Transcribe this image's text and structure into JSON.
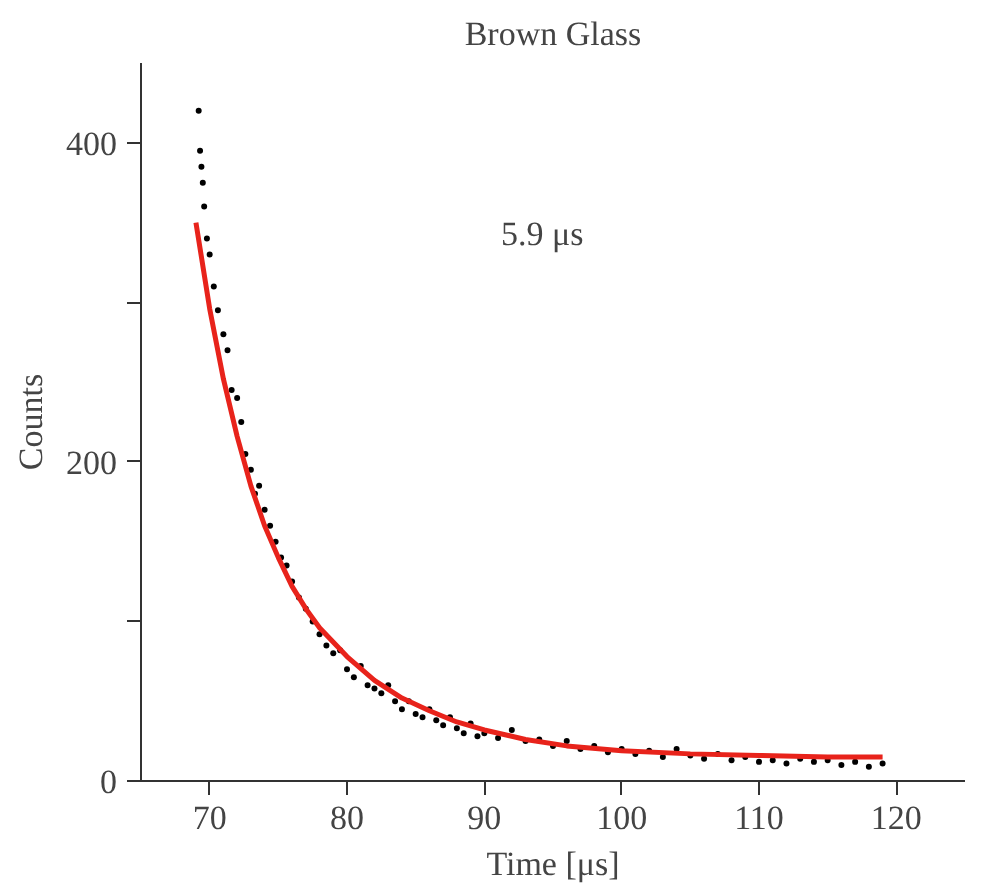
{
  "chart_data": {
    "type": "scatter",
    "title": "Brown Glass",
    "xlabel": "Time [μs]",
    "ylabel": "Counts",
    "xlim": [
      65,
      125
    ],
    "ylim": [
      0,
      450
    ],
    "xticks": [
      70,
      80,
      90,
      100,
      110,
      120
    ],
    "yticks": [
      0,
      {
        "value": 100,
        "label": null
      },
      200,
      {
        "value": 300,
        "label": null
      },
      400
    ],
    "grid": false,
    "annotations": [
      "5.9 μs"
    ],
    "series": [
      {
        "color": "#000000",
        "marker": "circle",
        "x": [
          69.2,
          69.3,
          69.4,
          69.5,
          69.6,
          69.8,
          70,
          70.3,
          70.6,
          71,
          71.3,
          71.6,
          72,
          72.3,
          72.6,
          73,
          73.3,
          73.6,
          74,
          74.4,
          74.8,
          75.2,
          75.6,
          76,
          76.5,
          77,
          77.5,
          78,
          78.5,
          79,
          79.5,
          80,
          80.5,
          81,
          81.5,
          82,
          82.5,
          83,
          83.5,
          84,
          84.5,
          85,
          85.5,
          86,
          86.5,
          87,
          87.5,
          88,
          88.5,
          89,
          89.5,
          90,
          91,
          92,
          93,
          94,
          95,
          96,
          97,
          98,
          99,
          100,
          101,
          102,
          103,
          104,
          105,
          106,
          107,
          108,
          109,
          110,
          111,
          112,
          113,
          114,
          115,
          116,
          117,
          118,
          119
        ],
        "values": [
          420,
          395,
          385,
          375,
          360,
          340,
          330,
          310,
          295,
          280,
          270,
          245,
          240,
          225,
          205,
          195,
          180,
          185,
          170,
          160,
          150,
          140,
          135,
          125,
          115,
          108,
          100,
          92,
          85,
          80,
          82,
          70,
          65,
          72,
          60,
          58,
          55,
          60,
          50,
          45,
          50,
          42,
          40,
          45,
          38,
          35,
          40,
          33,
          30,
          36,
          28,
          30,
          27,
          32,
          25,
          26,
          22,
          25,
          20,
          22,
          18,
          20,
          17,
          19,
          15,
          20,
          16,
          14,
          17,
          13,
          15,
          12,
          13,
          11,
          14,
          12,
          13,
          10,
          12,
          9,
          11
        ]
      },
      {
        "type": "line",
        "color": "#e8231b",
        "marker": "none",
        "line_style": "solid",
        "x": [
          69,
          70,
          71,
          72,
          73,
          74,
          75,
          76,
          77,
          78,
          80,
          82,
          84,
          86,
          88,
          90,
          93,
          96,
          100,
          105,
          110,
          115,
          119
        ],
        "values": [
          350,
          296,
          252,
          216,
          185,
          160,
          140,
          122,
          108,
          96,
          78,
          63,
          52,
          44,
          37,
          32,
          26,
          22,
          19,
          17,
          16,
          15,
          15
        ]
      }
    ]
  }
}
